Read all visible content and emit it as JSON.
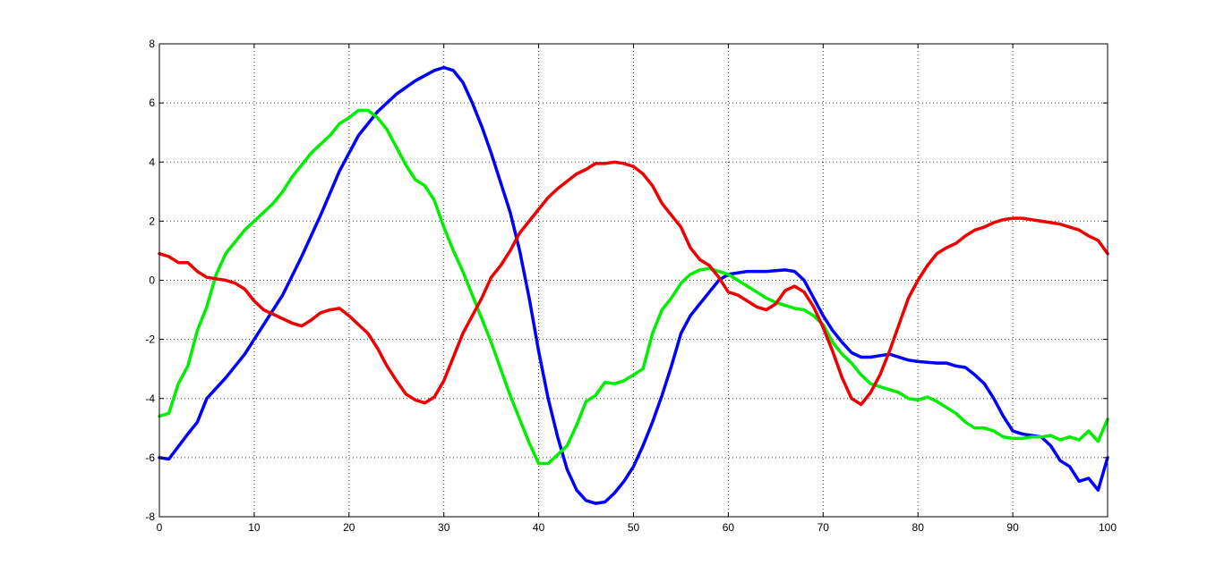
{
  "chart_data": {
    "type": "line",
    "title": "",
    "xlabel": "",
    "ylabel": "",
    "xlim": [
      0,
      100
    ],
    "ylim": [
      -8,
      8
    ],
    "grid": true,
    "x_ticks": [
      0,
      10,
      20,
      30,
      40,
      50,
      60,
      70,
      80,
      90,
      100
    ],
    "y_ticks": [
      -8,
      -6,
      -4,
      -2,
      0,
      2,
      4,
      6,
      8
    ],
    "series": [
      {
        "color": "#0000ff",
        "points": [
          [
            0,
            -6.0
          ],
          [
            1,
            -6.05
          ],
          [
            3,
            -5.2
          ],
          [
            4,
            -4.8
          ],
          [
            5,
            -4.0
          ],
          [
            7,
            -3.3
          ],
          [
            9,
            -2.5
          ],
          [
            11,
            -1.5
          ],
          [
            13,
            -0.5
          ],
          [
            15,
            0.8
          ],
          [
            17,
            2.2
          ],
          [
            19,
            3.7
          ],
          [
            21,
            4.9
          ],
          [
            23,
            5.7
          ],
          [
            25,
            6.3
          ],
          [
            27,
            6.75
          ],
          [
            29,
            7.1
          ],
          [
            30,
            7.2
          ],
          [
            31,
            7.1
          ],
          [
            32,
            6.7
          ],
          [
            33,
            6.0
          ],
          [
            34,
            5.2
          ],
          [
            35,
            4.3
          ],
          [
            36,
            3.3
          ],
          [
            37,
            2.3
          ],
          [
            38,
            1.0
          ],
          [
            39,
            -0.6
          ],
          [
            40,
            -2.4
          ],
          [
            41,
            -4.0
          ],
          [
            42,
            -5.3
          ],
          [
            43,
            -6.4
          ],
          [
            44,
            -7.1
          ],
          [
            45,
            -7.45
          ],
          [
            46,
            -7.55
          ],
          [
            47,
            -7.5
          ],
          [
            48,
            -7.2
          ],
          [
            49,
            -6.8
          ],
          [
            50,
            -6.3
          ],
          [
            51,
            -5.6
          ],
          [
            52,
            -4.8
          ],
          [
            53,
            -3.9
          ],
          [
            54,
            -2.9
          ],
          [
            55,
            -1.8
          ],
          [
            56,
            -1.2
          ],
          [
            57,
            -0.8
          ],
          [
            58,
            -0.4
          ],
          [
            59,
            0.0
          ],
          [
            60,
            0.2
          ],
          [
            61,
            0.25
          ],
          [
            62,
            0.3
          ],
          [
            64,
            0.3
          ],
          [
            66,
            0.35
          ],
          [
            67,
            0.3
          ],
          [
            68,
            0.0
          ],
          [
            69,
            -0.6
          ],
          [
            70,
            -1.2
          ],
          [
            71,
            -1.7
          ],
          [
            72,
            -2.1
          ],
          [
            73,
            -2.45
          ],
          [
            74,
            -2.6
          ],
          [
            75,
            -2.6
          ],
          [
            76,
            -2.55
          ],
          [
            77,
            -2.5
          ],
          [
            78,
            -2.6
          ],
          [
            79,
            -2.7
          ],
          [
            80,
            -2.75
          ],
          [
            82,
            -2.8
          ],
          [
            83,
            -2.8
          ],
          [
            84,
            -2.9
          ],
          [
            85,
            -2.95
          ],
          [
            86,
            -3.2
          ],
          [
            87,
            -3.5
          ],
          [
            88,
            -4.0
          ],
          [
            89,
            -4.6
          ],
          [
            90,
            -5.1
          ],
          [
            91,
            -5.2
          ],
          [
            92,
            -5.25
          ],
          [
            93,
            -5.3
          ],
          [
            94,
            -5.6
          ],
          [
            95,
            -6.1
          ],
          [
            96,
            -6.3
          ],
          [
            97,
            -6.8
          ],
          [
            98,
            -6.7
          ],
          [
            99,
            -7.1
          ],
          [
            100,
            -6.0
          ]
        ]
      },
      {
        "color": "#00ee00",
        "points": [
          [
            0,
            -4.6
          ],
          [
            1,
            -4.5
          ],
          [
            2,
            -3.5
          ],
          [
            3,
            -2.9
          ],
          [
            4,
            -1.7
          ],
          [
            5,
            -0.9
          ],
          [
            6,
            0.2
          ],
          [
            7,
            0.9
          ],
          [
            8,
            1.3
          ],
          [
            9,
            1.7
          ],
          [
            10,
            2.0
          ],
          [
            11,
            2.3
          ],
          [
            12,
            2.6
          ],
          [
            13,
            3.0
          ],
          [
            14,
            3.5
          ],
          [
            15,
            3.9
          ],
          [
            16,
            4.3
          ],
          [
            17,
            4.6
          ],
          [
            18,
            4.9
          ],
          [
            19,
            5.3
          ],
          [
            20,
            5.5
          ],
          [
            21,
            5.75
          ],
          [
            22,
            5.75
          ],
          [
            23,
            5.5
          ],
          [
            24,
            5.1
          ],
          [
            25,
            4.5
          ],
          [
            26,
            3.9
          ],
          [
            27,
            3.4
          ],
          [
            28,
            3.2
          ],
          [
            29,
            2.7
          ],
          [
            30,
            1.8
          ],
          [
            31,
            1.0
          ],
          [
            32,
            0.3
          ],
          [
            33,
            -0.5
          ],
          [
            34,
            -1.3
          ],
          [
            35,
            -2.1
          ],
          [
            36,
            -3.0
          ],
          [
            37,
            -3.9
          ],
          [
            38,
            -4.7
          ],
          [
            39,
            -5.5
          ],
          [
            40,
            -6.2
          ],
          [
            41,
            -6.2
          ],
          [
            42,
            -5.9
          ],
          [
            43,
            -5.6
          ],
          [
            44,
            -4.9
          ],
          [
            45,
            -4.1
          ],
          [
            46,
            -3.9
          ],
          [
            47,
            -3.45
          ],
          [
            48,
            -3.5
          ],
          [
            49,
            -3.4
          ],
          [
            50,
            -3.2
          ],
          [
            51,
            -3.0
          ],
          [
            52,
            -1.8
          ],
          [
            53,
            -1.0
          ],
          [
            54,
            -0.6
          ],
          [
            55,
            -0.1
          ],
          [
            56,
            0.2
          ],
          [
            57,
            0.35
          ],
          [
            58,
            0.4
          ],
          [
            59,
            0.3
          ],
          [
            60,
            0.2
          ],
          [
            61,
            0.0
          ],
          [
            62,
            -0.2
          ],
          [
            63,
            -0.4
          ],
          [
            64,
            -0.6
          ],
          [
            65,
            -0.75
          ],
          [
            66,
            -0.85
          ],
          [
            67,
            -0.95
          ],
          [
            68,
            -1.0
          ],
          [
            69,
            -1.2
          ],
          [
            70,
            -1.5
          ],
          [
            71,
            -2.1
          ],
          [
            72,
            -2.5
          ],
          [
            73,
            -2.8
          ],
          [
            74,
            -3.2
          ],
          [
            75,
            -3.5
          ],
          [
            76,
            -3.6
          ],
          [
            77,
            -3.7
          ],
          [
            78,
            -3.8
          ],
          [
            79,
            -4.0
          ],
          [
            80,
            -4.05
          ],
          [
            81,
            -3.95
          ],
          [
            82,
            -4.1
          ],
          [
            83,
            -4.3
          ],
          [
            84,
            -4.5
          ],
          [
            85,
            -4.8
          ],
          [
            86,
            -5.0
          ],
          [
            87,
            -5.0
          ],
          [
            88,
            -5.1
          ],
          [
            89,
            -5.3
          ],
          [
            90,
            -5.35
          ],
          [
            91,
            -5.35
          ],
          [
            92,
            -5.3
          ],
          [
            93,
            -5.3
          ],
          [
            94,
            -5.25
          ],
          [
            95,
            -5.4
          ],
          [
            96,
            -5.3
          ],
          [
            97,
            -5.4
          ],
          [
            98,
            -5.1
          ],
          [
            99,
            -5.45
          ],
          [
            100,
            -4.7
          ]
        ]
      },
      {
        "color": "#ee0000",
        "points": [
          [
            0,
            0.9
          ],
          [
            1,
            0.8
          ],
          [
            2,
            0.6
          ],
          [
            3,
            0.6
          ],
          [
            4,
            0.3
          ],
          [
            5,
            0.1
          ],
          [
            6,
            0.05
          ],
          [
            7,
            0.0
          ],
          [
            8,
            -0.1
          ],
          [
            9,
            -0.3
          ],
          [
            10,
            -0.7
          ],
          [
            11,
            -1.0
          ],
          [
            12,
            -1.15
          ],
          [
            13,
            -1.3
          ],
          [
            14,
            -1.45
          ],
          [
            15,
            -1.55
          ],
          [
            16,
            -1.35
          ],
          [
            17,
            -1.1
          ],
          [
            18,
            -1.0
          ],
          [
            19,
            -0.95
          ],
          [
            20,
            -1.2
          ],
          [
            21,
            -1.5
          ],
          [
            22,
            -1.8
          ],
          [
            23,
            -2.3
          ],
          [
            24,
            -2.9
          ],
          [
            25,
            -3.4
          ],
          [
            26,
            -3.85
          ],
          [
            27,
            -4.05
          ],
          [
            28,
            -4.15
          ],
          [
            29,
            -3.95
          ],
          [
            30,
            -3.4
          ],
          [
            31,
            -2.6
          ],
          [
            32,
            -1.8
          ],
          [
            33,
            -1.2
          ],
          [
            34,
            -0.6
          ],
          [
            35,
            0.1
          ],
          [
            36,
            0.5
          ],
          [
            37,
            1.0
          ],
          [
            38,
            1.6
          ],
          [
            39,
            2.0
          ],
          [
            40,
            2.4
          ],
          [
            41,
            2.8
          ],
          [
            42,
            3.1
          ],
          [
            43,
            3.35
          ],
          [
            44,
            3.6
          ],
          [
            45,
            3.75
          ],
          [
            46,
            3.95
          ],
          [
            47,
            3.95
          ],
          [
            48,
            4.0
          ],
          [
            49,
            3.95
          ],
          [
            50,
            3.85
          ],
          [
            51,
            3.6
          ],
          [
            52,
            3.2
          ],
          [
            53,
            2.6
          ],
          [
            54,
            2.2
          ],
          [
            55,
            1.8
          ],
          [
            56,
            1.1
          ],
          [
            57,
            0.7
          ],
          [
            58,
            0.5
          ],
          [
            59,
            0.1
          ],
          [
            60,
            -0.4
          ],
          [
            61,
            -0.5
          ],
          [
            62,
            -0.7
          ],
          [
            63,
            -0.9
          ],
          [
            64,
            -1.0
          ],
          [
            65,
            -0.8
          ],
          [
            66,
            -0.35
          ],
          [
            67,
            -0.2
          ],
          [
            68,
            -0.4
          ],
          [
            69,
            -0.9
          ],
          [
            70,
            -1.6
          ],
          [
            71,
            -2.4
          ],
          [
            72,
            -3.3
          ],
          [
            73,
            -4.0
          ],
          [
            74,
            -4.2
          ],
          [
            75,
            -3.8
          ],
          [
            76,
            -3.2
          ],
          [
            77,
            -2.4
          ],
          [
            78,
            -1.5
          ],
          [
            79,
            -0.6
          ],
          [
            80,
            0.0
          ],
          [
            81,
            0.5
          ],
          [
            82,
            0.9
          ],
          [
            83,
            1.1
          ],
          [
            84,
            1.25
          ],
          [
            85,
            1.5
          ],
          [
            86,
            1.7
          ],
          [
            87,
            1.8
          ],
          [
            88,
            1.95
          ],
          [
            89,
            2.05
          ],
          [
            90,
            2.1
          ],
          [
            91,
            2.1
          ],
          [
            92,
            2.05
          ],
          [
            93,
            2.0
          ],
          [
            94,
            1.95
          ],
          [
            95,
            1.9
          ],
          [
            96,
            1.8
          ],
          [
            97,
            1.7
          ],
          [
            98,
            1.5
          ],
          [
            99,
            1.35
          ],
          [
            100,
            0.9
          ]
        ]
      }
    ]
  }
}
